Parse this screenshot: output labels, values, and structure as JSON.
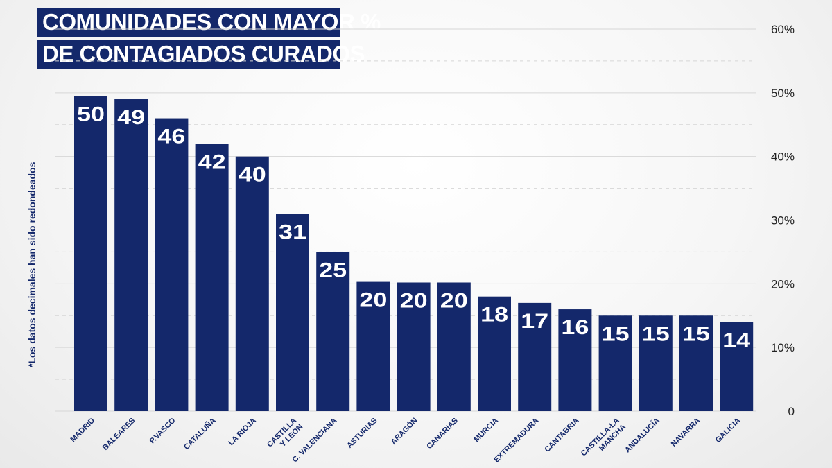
{
  "title_lines": [
    "COMUNIDADES CON MAYOR %",
    "DE CONTAGIADOS CURADOS"
  ],
  "footnote": "*Los datos decimales han sido redondeados",
  "colors": {
    "bar": "#14286b",
    "label_text": "#ffffff",
    "axis_text": "#222222",
    "category_text": "#14286b",
    "grid": "#d6d6d6"
  },
  "chart_data": {
    "type": "bar",
    "title": "COMUNIDADES CON MAYOR % DE CONTAGIADOS CURADOS",
    "xlabel": "",
    "ylabel": "",
    "ylim": [
      0,
      60
    ],
    "yticks": [
      0,
      10,
      20,
      30,
      40,
      50,
      60
    ],
    "ytick_labels": [
      "0",
      "10%",
      "20%",
      "30%",
      "40%",
      "50%",
      "60%"
    ],
    "grid": true,
    "categories": [
      [
        "MADRID"
      ],
      [
        "BALEARES"
      ],
      [
        "P.VASCO"
      ],
      [
        "CATALUÑA"
      ],
      [
        "LA RIOJA"
      ],
      [
        "CASTILLA",
        "Y LEÓN"
      ],
      [
        "C. VALENCIANA"
      ],
      [
        "ASTURIAS"
      ],
      [
        "ARAGÓN"
      ],
      [
        "CANARIAS"
      ],
      [
        "MURCIA"
      ],
      [
        "EXTREMADURA"
      ],
      [
        "CANTABRIA"
      ],
      [
        "CASTILLA-LA",
        "MANCHA"
      ],
      [
        "ANDALUCÍA"
      ],
      [
        "NAVARRA"
      ],
      [
        "GALICIA"
      ]
    ],
    "values": [
      49.5,
      49,
      46,
      42,
      40,
      31,
      25,
      20.3,
      20.2,
      20.2,
      18,
      17,
      16,
      15,
      15,
      15,
      14
    ],
    "value_labels": [
      "50",
      "49",
      "46",
      "42",
      "40",
      "31",
      "25",
      "20",
      "20",
      "20",
      "18",
      "17",
      "16",
      "15",
      "15",
      "15",
      "14"
    ]
  }
}
